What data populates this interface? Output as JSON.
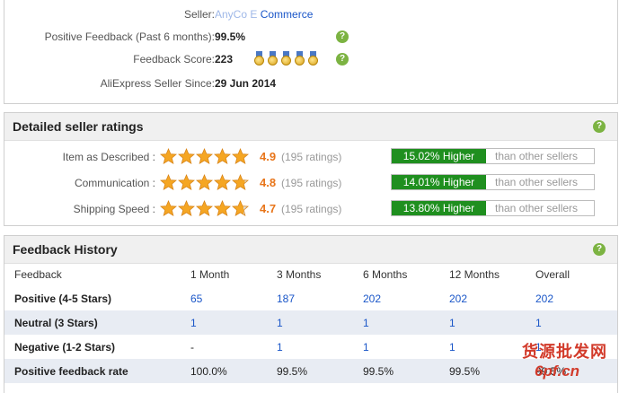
{
  "seller_info": {
    "seller_label": "Seller:",
    "seller_name_obscured": "AnyCo E",
    "seller_name": "Commerce",
    "feedback_label": "Positive Feedback (Past 6 months):",
    "feedback_value": "99.5%",
    "score_label": "Feedback Score:",
    "score_value": "223",
    "medal_count": 5,
    "since_label": "AliExpress Seller Since:",
    "since_value": "29 Jun 2014"
  },
  "detailed_ratings": {
    "title": "Detailed seller ratings",
    "rows": [
      {
        "label": "Item as Described :",
        "score": "4.9",
        "count": "(195 ratings)",
        "stars": 4.9,
        "higher": "15.02% Higher",
        "other": "than other sellers"
      },
      {
        "label": "Communication :",
        "score": "4.8",
        "count": "(195 ratings)",
        "stars": 4.8,
        "higher": "14.01% Higher",
        "other": "than other sellers"
      },
      {
        "label": "Shipping Speed :",
        "score": "4.7",
        "count": "(195 ratings)",
        "stars": 4.7,
        "higher": "13.80% Higher",
        "other": "than other sellers"
      }
    ]
  },
  "feedback_history": {
    "title": "Feedback History",
    "headers": [
      "Feedback",
      "1 Month",
      "3 Months",
      "6 Months",
      "12 Months",
      "Overall"
    ],
    "rows": [
      {
        "label": "Positive (4-5 Stars)",
        "values": [
          "65",
          "187",
          "202",
          "202",
          "202"
        ],
        "link": true
      },
      {
        "label": "Neutral (3 Stars)",
        "values": [
          "1",
          "1",
          "1",
          "1",
          "1"
        ],
        "link": true
      },
      {
        "label": "Negative (1-2 Stars)",
        "values": [
          "-",
          "1",
          "1",
          "1",
          "1"
        ],
        "link": true
      },
      {
        "label": "Positive feedback rate",
        "values": [
          "100.0%",
          "99.5%",
          "99.5%",
          "99.5%",
          "99.5%"
        ],
        "link": false
      }
    ]
  },
  "help_icon": "?",
  "watermark": {
    "line1": "货源批发网",
    "line2": "6pf.cn"
  },
  "colors": {
    "accent_orange": "#e8751a",
    "higher_green": "#1f8f1f",
    "link_blue": "#1a56c8",
    "help_green": "#7cb342"
  }
}
